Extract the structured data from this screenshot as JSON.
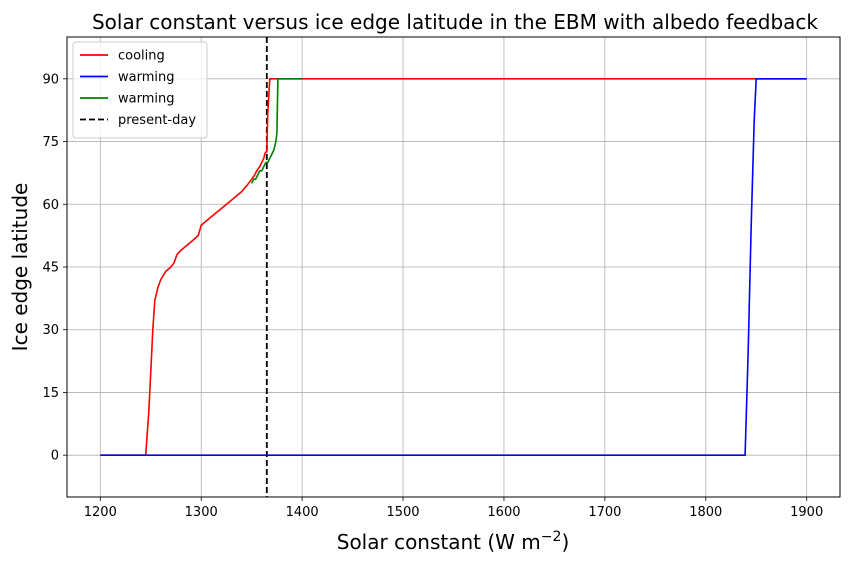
{
  "chart_data": {
    "type": "line",
    "title": "Solar constant versus ice edge latitude in the EBM with albedo feedback",
    "xlabel": "Solar constant (W m",
    "xlabel_sup": "−2",
    "xlabel_close": ")",
    "ylabel": "Ice edge latitude",
    "xlim": [
      1167,
      1933
    ],
    "ylim": [
      -10,
      100
    ],
    "xticks": [
      1200,
      1300,
      1400,
      1500,
      1600,
      1700,
      1800,
      1900
    ],
    "yticks": [
      0,
      15,
      30,
      45,
      60,
      75,
      90
    ],
    "grid": true,
    "legend_position": "top-left",
    "series": [
      {
        "name": "cooling",
        "color": "#ff0000",
        "x": [
          1200,
          1245,
          1248,
          1250,
          1252,
          1254,
          1257,
          1260,
          1265,
          1270,
          1273,
          1276,
          1280,
          1290,
          1297,
          1300,
          1310,
          1320,
          1330,
          1340,
          1346,
          1350,
          1353,
          1355,
          1358,
          1360,
          1362,
          1363,
          1364,
          1365,
          1366,
          1368,
          1370,
          1400,
          1500,
          1600,
          1700,
          1800,
          1900
        ],
        "y": [
          0,
          0,
          10,
          20,
          30,
          37,
          40,
          42,
          44,
          45,
          46,
          48,
          49,
          51,
          52.5,
          55,
          57,
          59,
          61,
          63,
          64.7,
          66,
          67,
          68,
          69,
          70,
          71,
          72,
          72.5,
          72.5,
          82,
          90,
          90,
          90,
          90,
          90,
          90,
          90,
          90
        ]
      },
      {
        "name": "warming",
        "color": "#0000ff",
        "x": [
          1200,
          1300,
          1400,
          1500,
          1600,
          1700,
          1800,
          1839,
          1842,
          1845,
          1848,
          1850,
          1900
        ],
        "y": [
          0,
          0,
          0,
          0,
          0,
          0,
          0,
          0,
          25,
          55,
          80,
          90,
          90
        ]
      },
      {
        "name": "warming",
        "color": "#008000",
        "x": [
          1350,
          1352,
          1354,
          1356,
          1358,
          1360,
          1362,
          1364,
          1366,
          1368,
          1370,
          1372,
          1374,
          1375,
          1376,
          1400
        ],
        "y": [
          65,
          66,
          66,
          67,
          68,
          68,
          69,
          70,
          70,
          71,
          72,
          73,
          75,
          77,
          90,
          90
        ]
      }
    ],
    "reference_lines": [
      {
        "name": "present-day",
        "orientation": "vertical",
        "x": 1365,
        "color": "#000000",
        "style": "dashed"
      }
    ]
  }
}
